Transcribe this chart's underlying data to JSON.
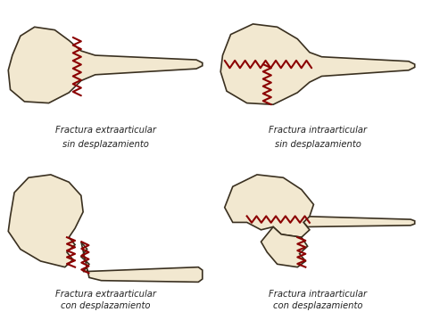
{
  "background_color": "#ffffff",
  "labels": [
    [
      "Fractura extraarticular",
      "sin desplazamiento"
    ],
    [
      "Fractura intraarticular",
      "sin desplazamiento"
    ],
    [
      "Fractura extraarticular",
      "con desplazamiento"
    ],
    [
      "Fractura intraarticular",
      "con desplazamiento"
    ]
  ],
  "bone_fill": "#f2e8d0",
  "bone_outline": "#3a3020",
  "fracture_color": "#8b0000",
  "label_fontsize": 7.2,
  "label_color": "#222222"
}
